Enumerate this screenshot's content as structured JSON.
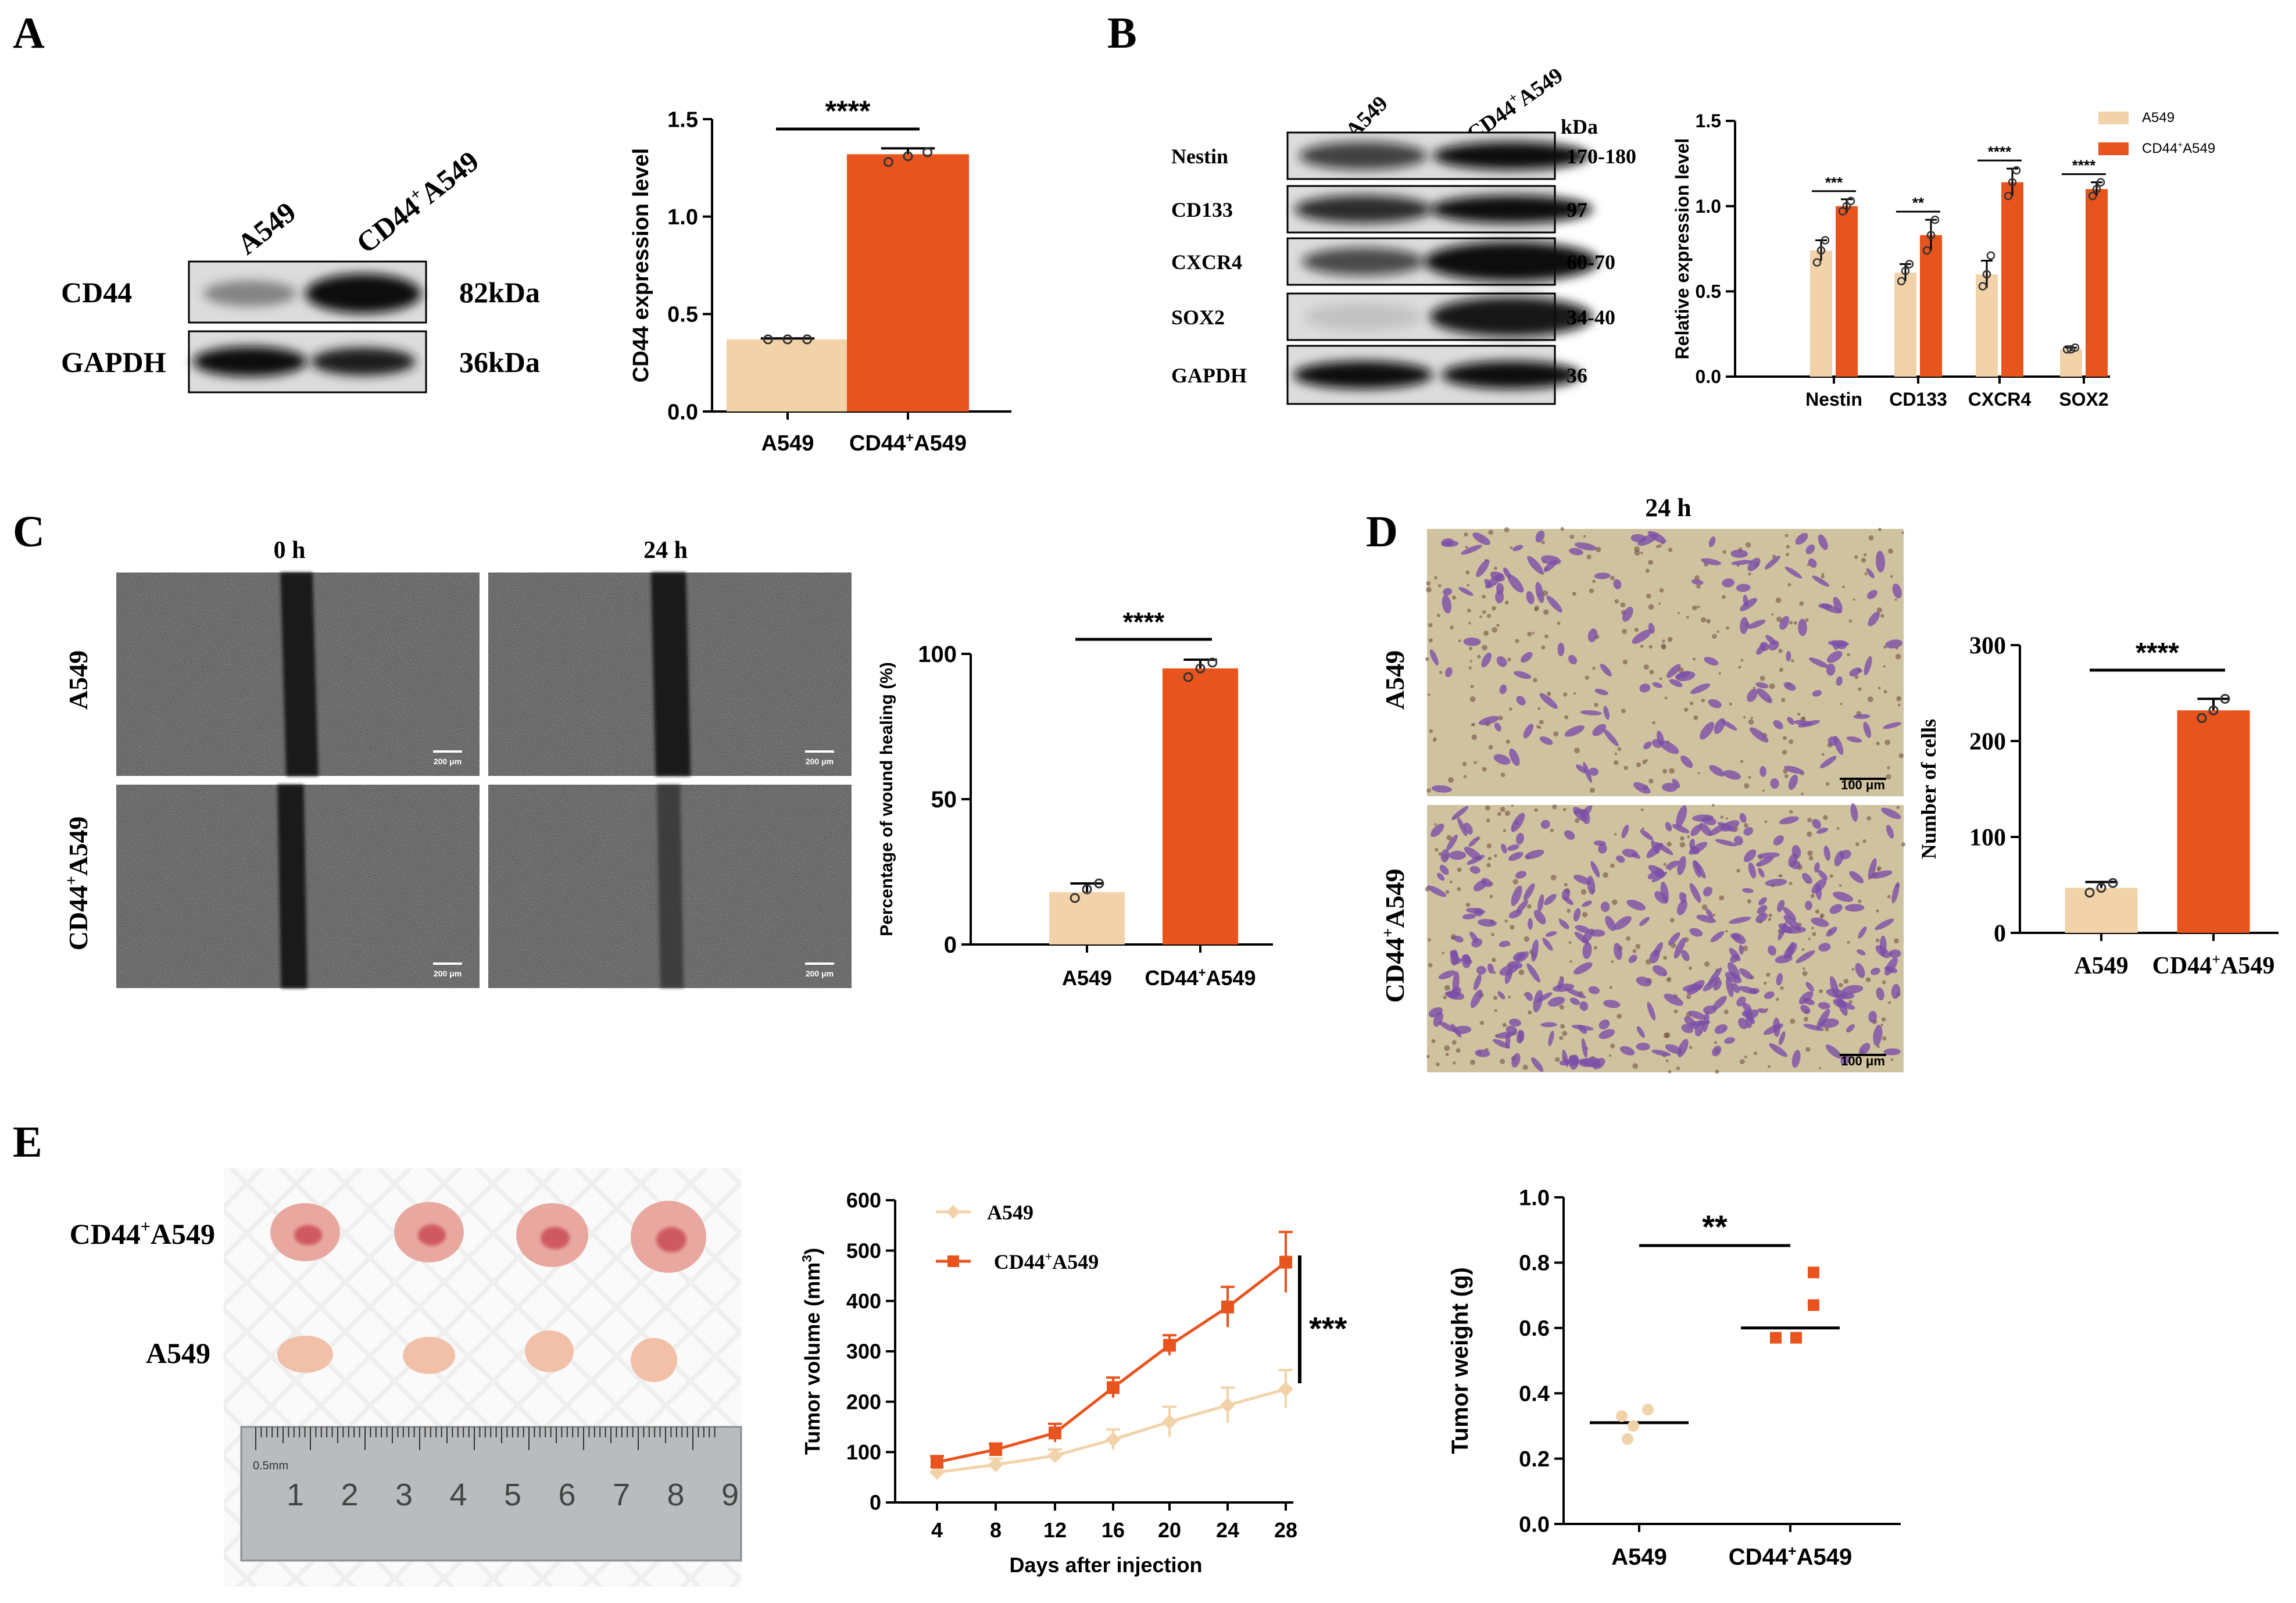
{
  "colors": {
    "a549": "#F2D2A9",
    "cd44": "#E8541E",
    "axis": "#000000",
    "blot_bg": "#DCDCDC",
    "band": "#1c1c1c",
    "micro_bg": "#CFC29F",
    "cell": "#7A4FA8"
  },
  "panel_letters": [
    "A",
    "B",
    "C",
    "D",
    "E"
  ],
  "panelA": {
    "lanes": [
      "A549",
      "CD44",
      "+",
      "A549"
    ],
    "rows": [
      {
        "label": "CD44",
        "size": "82kDa"
      },
      {
        "label": "GAPDH",
        "size": "36kDa"
      }
    ]
  },
  "panelB": {
    "lanes": [
      "A549",
      "CD44",
      "+",
      "A549"
    ],
    "kda_header": "kDa",
    "rows": [
      {
        "label": "Nestin",
        "size": "170-180"
      },
      {
        "label": "CD133",
        "size": "97"
      },
      {
        "label": "CXCR4",
        "size": "60-70"
      },
      {
        "label": "SOX2",
        "size": "34-40"
      },
      {
        "label": "GAPDH",
        "size": "36"
      }
    ],
    "legend": [
      {
        "label": "A549",
        "color": "#F2D2A9"
      },
      {
        "label": "CD44",
        "sup": "+",
        "label2": "A549",
        "color": "#E8541E"
      }
    ]
  },
  "panelC": {
    "time_labels": [
      "0 h",
      "24 h"
    ],
    "row_labels": [
      "A549",
      "CD44",
      "+",
      "A549"
    ],
    "scale_text": "200 μm"
  },
  "panelD": {
    "time_label": "24 h",
    "row_labels": [
      "A549",
      "CD44",
      "+",
      "A549"
    ],
    "scale_text": "100 μm"
  },
  "panelE": {
    "row_labels": [
      "CD44",
      "+",
      "A549",
      "A549"
    ],
    "ruler_numbers": [
      "1",
      "2",
      "3",
      "4",
      "5",
      "6",
      "7",
      "8",
      "9"
    ],
    "ruler_text": "0.5mm"
  },
  "chart_data": [
    {
      "id": "A-bar",
      "type": "bar",
      "categories": [
        "A549",
        "CD44+A549"
      ],
      "category_parts": [
        [
          "A549"
        ],
        [
          "CD44",
          "+",
          "A549"
        ]
      ],
      "values": [
        0.37,
        1.32
      ],
      "errors": [
        0.005,
        0.03
      ],
      "points": [
        [
          0.37,
          0.37,
          0.37
        ],
        [
          1.28,
          1.31,
          1.33
        ]
      ],
      "ylabel": "CD44 expression level",
      "ylim": [
        0,
        1.5
      ],
      "yticks": [
        0.0,
        0.5,
        1.0,
        1.5
      ],
      "ytick_labels": [
        "0.0",
        "0.5",
        "1.0",
        "1.5"
      ],
      "significance": "****",
      "grid": false
    },
    {
      "id": "B-bar",
      "type": "bar",
      "categories": [
        "Nestin",
        "CD133",
        "CXCR4",
        "SOX2"
      ],
      "series": [
        {
          "name": "A549",
          "values": [
            0.74,
            0.61,
            0.6,
            0.16
          ],
          "errors": [
            0.06,
            0.05,
            0.08,
            0.01
          ],
          "points": [
            [
              0.67,
              0.74,
              0.8
            ],
            [
              0.56,
              0.62,
              0.66
            ],
            [
              0.53,
              0.6,
              0.71
            ],
            [
              0.16,
              0.16,
              0.17
            ]
          ]
        },
        {
          "name": "CD44+A549",
          "values": [
            1.0,
            0.83,
            1.14,
            1.1
          ],
          "errors": [
            0.04,
            0.09,
            0.08,
            0.04
          ],
          "points": [
            [
              0.97,
              1.0,
              1.03
            ],
            [
              0.74,
              0.83,
              0.92
            ],
            [
              1.06,
              1.14,
              1.21
            ],
            [
              1.06,
              1.1,
              1.14
            ]
          ]
        }
      ],
      "ylabel": "Relative expression level",
      "ylim": [
        0,
        1.5
      ],
      "yticks": [
        0.0,
        0.5,
        1.0,
        1.5
      ],
      "ytick_labels": [
        "0.0",
        "0.5",
        "1.0",
        "1.5"
      ],
      "significance": [
        "***",
        "**",
        "****",
        "****"
      ],
      "legend_position": "top-right",
      "grid": false
    },
    {
      "id": "C-bar",
      "type": "bar",
      "categories": [
        "A549",
        "CD44+A549"
      ],
      "category_parts": [
        [
          "A549"
        ],
        [
          "CD44",
          "+",
          "A549"
        ]
      ],
      "values": [
        18,
        95
      ],
      "errors": [
        3,
        3
      ],
      "points": [
        [
          16,
          19,
          21
        ],
        [
          92,
          95,
          97
        ]
      ],
      "ylabel": "Percentage of wound healing (%)",
      "ylim": [
        0,
        100
      ],
      "yticks": [
        0,
        50,
        100
      ],
      "ytick_labels": [
        "0",
        "50",
        "100"
      ],
      "significance": "****",
      "grid": false
    },
    {
      "id": "D-bar",
      "type": "bar",
      "categories": [
        "A549",
        "CD44+A549"
      ],
      "category_parts": [
        [
          "A549"
        ],
        [
          "CD44",
          "+",
          "A549"
        ]
      ],
      "values": [
        47,
        232
      ],
      "errors": [
        6,
        12
      ],
      "points": [
        [
          42,
          47,
          52
        ],
        [
          224,
          232,
          244
        ]
      ],
      "ylabel": "Number of cells",
      "ylim": [
        0,
        300
      ],
      "yticks": [
        0,
        100,
        200,
        300
      ],
      "ytick_labels": [
        "0",
        "100",
        "200",
        "300"
      ],
      "significance": "****",
      "grid": false
    },
    {
      "id": "E-line",
      "type": "line",
      "x": [
        4,
        8,
        12,
        16,
        20,
        24,
        28
      ],
      "series": [
        {
          "name": "A549",
          "values": [
            60,
            75,
            93,
            125,
            160,
            193,
            225
          ],
          "errors": [
            10,
            12,
            12,
            20,
            30,
            35,
            38
          ]
        },
        {
          "name": "CD44+A549",
          "values": [
            80,
            105,
            138,
            228,
            312,
            388,
            477
          ],
          "errors": [
            12,
            12,
            18,
            20,
            20,
            40,
            60
          ]
        }
      ],
      "xlabel": "Days after injection",
      "ylabel": "Tumor volume (mm3)",
      "ylabel_parts": [
        "Tumor volume (mm",
        "3",
        ")"
      ],
      "ylim": [
        0,
        600
      ],
      "yticks": [
        0,
        100,
        200,
        300,
        400,
        500,
        600
      ],
      "ytick_labels": [
        "0",
        "100",
        "200",
        "300",
        "400",
        "500",
        "600"
      ],
      "xtick_labels": [
        "4",
        "8",
        "12",
        "16",
        "20",
        "24",
        "28"
      ],
      "significance": "***",
      "legend_position": "top-left",
      "grid": false
    },
    {
      "id": "E-scatter",
      "type": "scatter",
      "categories": [
        "A549",
        "CD44+A549"
      ],
      "category_parts": [
        [
          "A549"
        ],
        [
          "CD44",
          "+",
          "A549"
        ]
      ],
      "points": [
        [
          0.33,
          0.35,
          0.3,
          0.26
        ],
        [
          0.77,
          0.67,
          0.57,
          0.57
        ]
      ],
      "means": [
        0.31,
        0.6
      ],
      "ylabel": "Tumor weight (g)",
      "ylim": [
        0,
        1.0
      ],
      "yticks": [
        0.0,
        0.2,
        0.4,
        0.6,
        0.8,
        1.0
      ],
      "ytick_labels": [
        "0.0",
        "0.2",
        "0.4",
        "0.6",
        "0.8",
        "1.0"
      ],
      "significance": "**",
      "grid": false
    }
  ]
}
